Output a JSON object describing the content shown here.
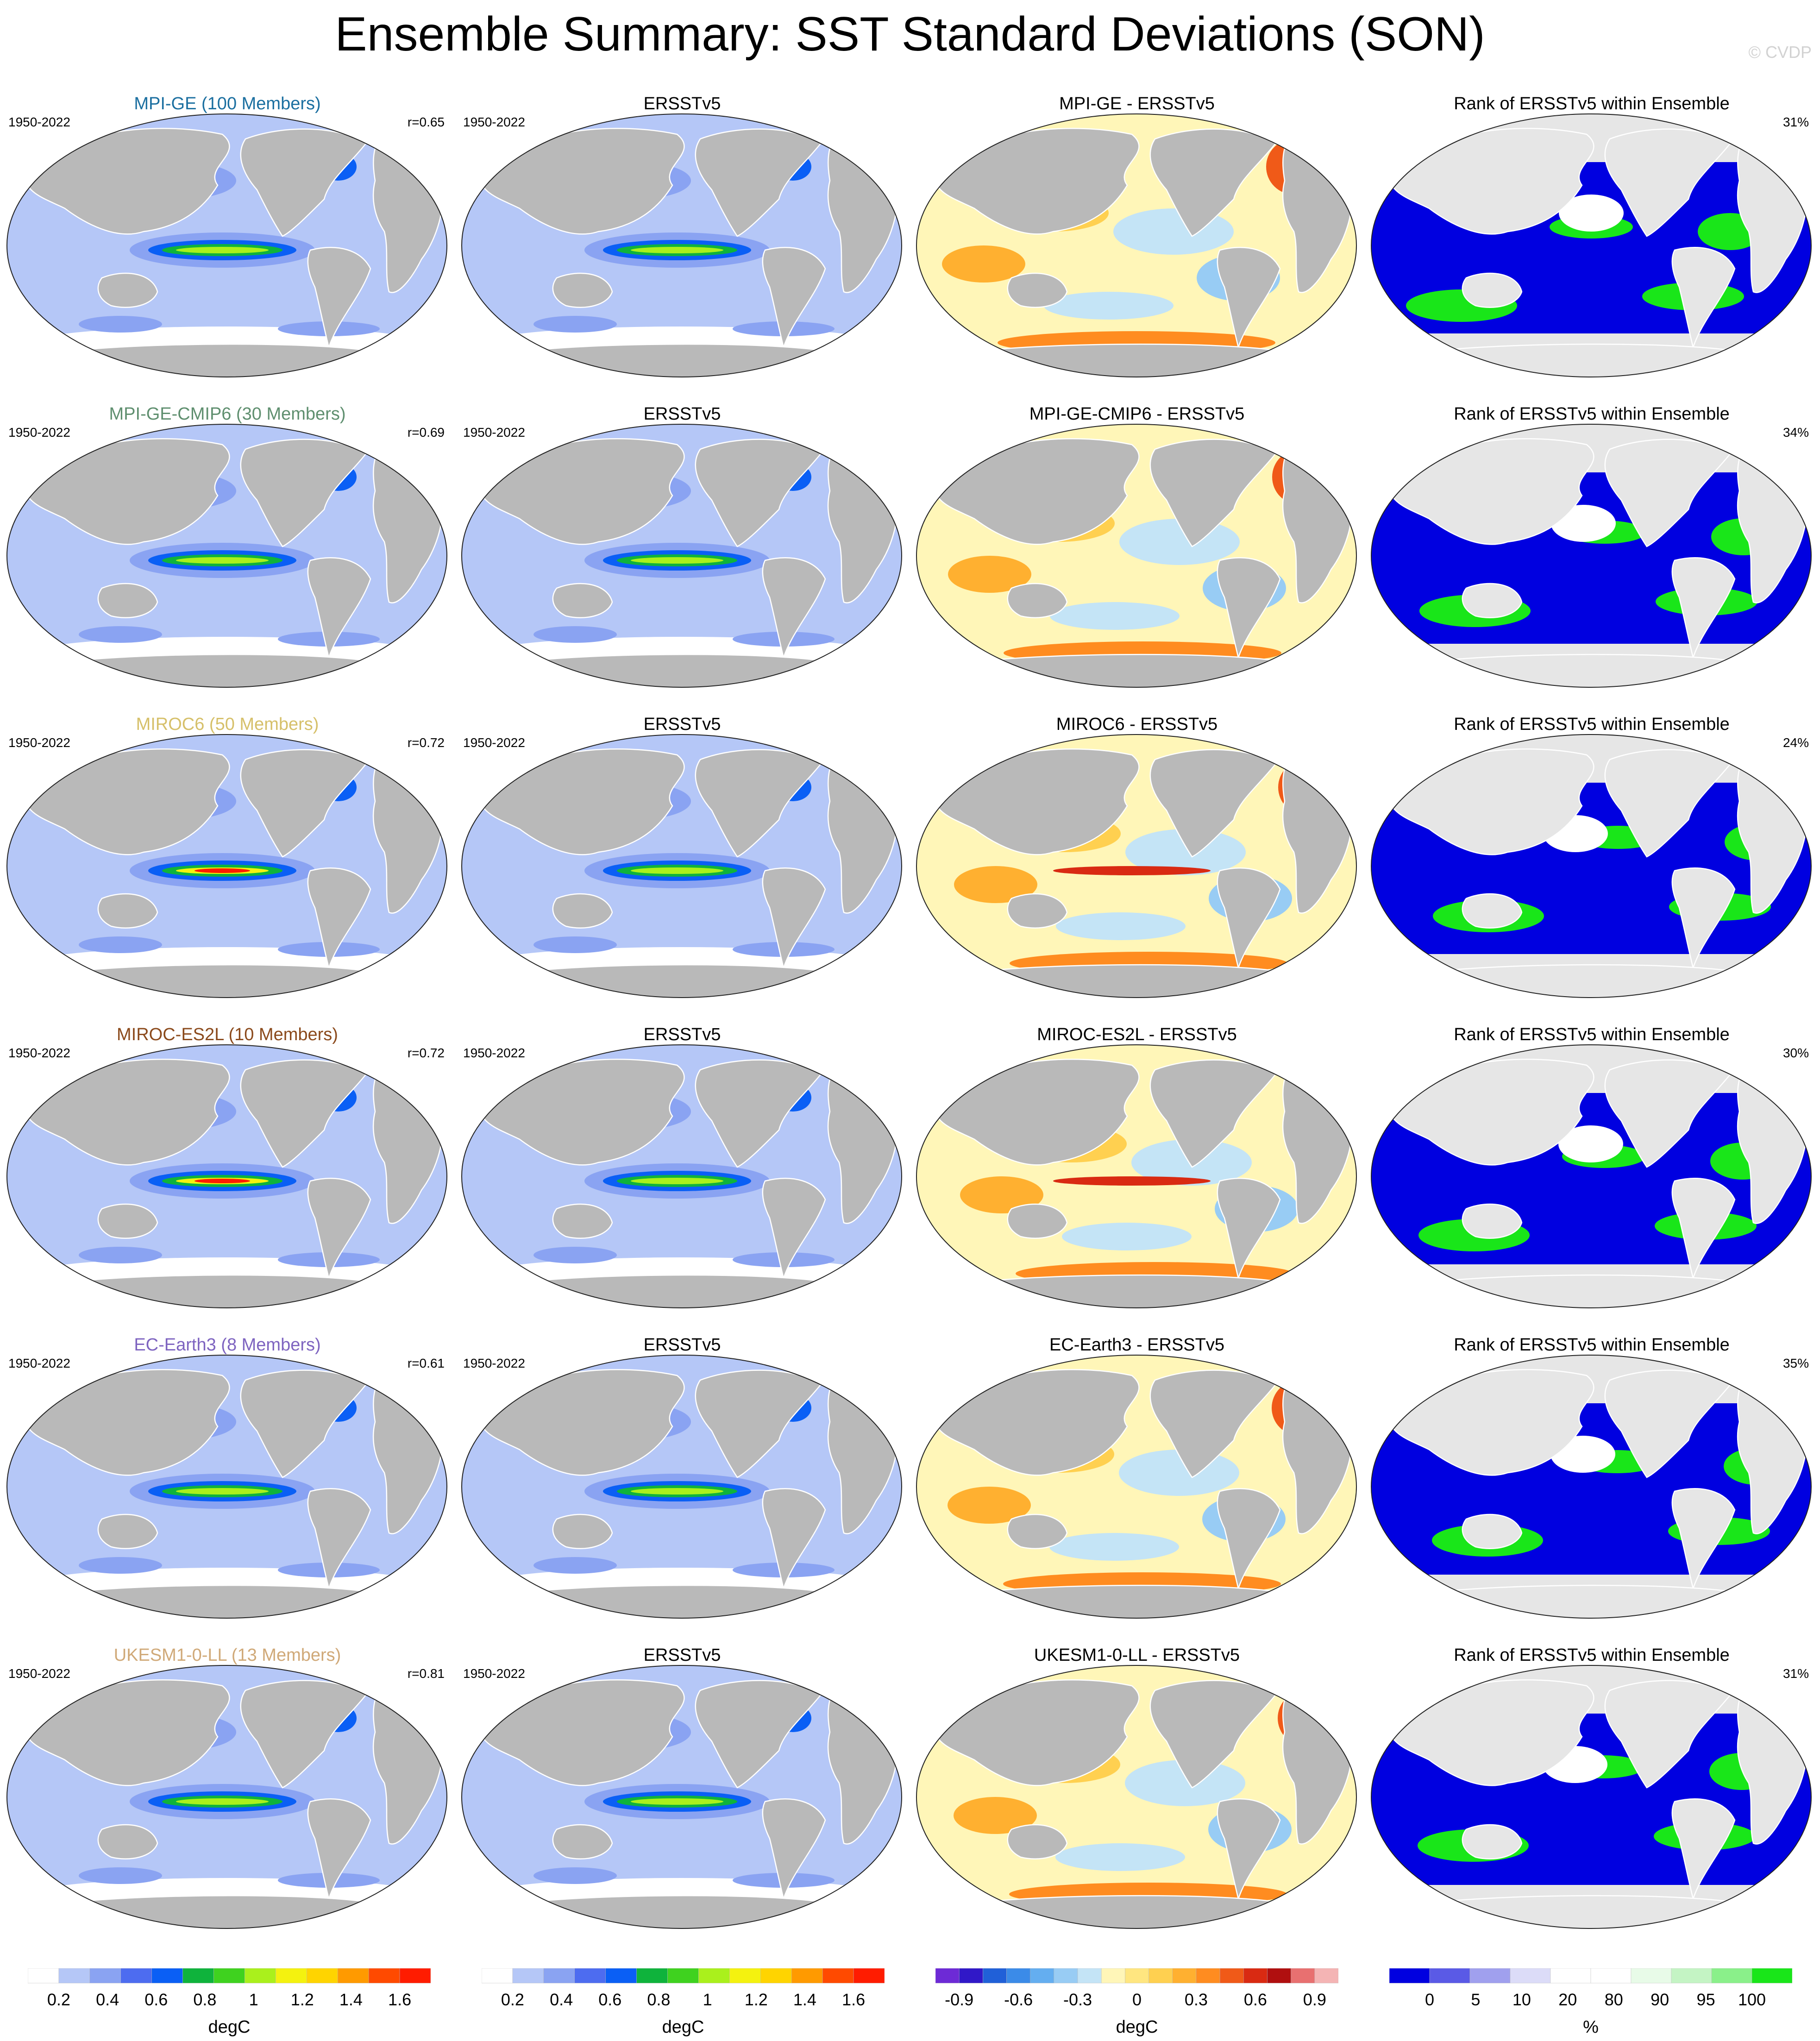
{
  "title": "Ensemble Summary: SST Standard Deviations (SON)",
  "copyright": "© CVDP",
  "period": "1950-2022",
  "colors": {
    "land": "#b9b9b9",
    "ocean_base": "#b5c7f7",
    "model_title_colors": [
      "#1b6fa0",
      "#5f8f6f",
      "#d6c06a",
      "#8b4a1c",
      "#7e64c0",
      "#d0a978"
    ]
  },
  "rows": [
    {
      "model_title": "MPI-GE (100 Members)",
      "r": "r=0.65",
      "obs_title": "ERSSTv5",
      "diff_title": "MPI-GE - ERSSTv5",
      "rank_title": "Rank of ERSSTv5 within Ensemble",
      "rank_pct": "31%"
    },
    {
      "model_title": "MPI-GE-CMIP6 (30 Members)",
      "r": "r=0.69",
      "obs_title": "ERSSTv5",
      "diff_title": "MPI-GE-CMIP6 - ERSSTv5",
      "rank_title": "Rank of ERSSTv5 within Ensemble",
      "rank_pct": "34%"
    },
    {
      "model_title": "MIROC6 (50 Members)",
      "r": "r=0.72",
      "obs_title": "ERSSTv5",
      "diff_title": "MIROC6 - ERSSTv5",
      "rank_title": "Rank of ERSSTv5 within Ensemble",
      "rank_pct": "24%"
    },
    {
      "model_title": "MIROC-ES2L (10 Members)",
      "r": "r=0.72",
      "obs_title": "ERSSTv5",
      "diff_title": "MIROC-ES2L - ERSSTv5",
      "rank_title": "Rank of ERSSTv5 within Ensemble",
      "rank_pct": "30%"
    },
    {
      "model_title": "EC-Earth3 (8 Members)",
      "r": "r=0.61",
      "obs_title": "ERSSTv5",
      "diff_title": "EC-Earth3 - ERSSTv5",
      "rank_title": "Rank of ERSSTv5 within Ensemble",
      "rank_pct": "35%"
    },
    {
      "model_title": "UKESM1-0-LL (13 Members)",
      "r": "r=0.81",
      "obs_title": "ERSSTv5",
      "diff_title": "UKESM1-0-LL - ERSSTv5",
      "rank_title": "Rank of ERSSTv5 within Ensemble",
      "rank_pct": "31%"
    }
  ],
  "colorbars": [
    {
      "unit": "degC",
      "labels": [
        "0.2",
        "0.4",
        "0.6",
        "0.8",
        "1",
        "1.2",
        "1.4",
        "1.6"
      ],
      "colors": [
        "#ffffff",
        "#b5c7f7",
        "#8aa3f2",
        "#4d6cf0",
        "#0a5ff5",
        "#0fb33c",
        "#3fd21f",
        "#aaf01c",
        "#f4f20f",
        "#ffd400",
        "#ff9a00",
        "#ff4a00",
        "#ff1c00"
      ]
    },
    {
      "unit": "degC",
      "labels": [
        "0.2",
        "0.4",
        "0.6",
        "0.8",
        "1",
        "1.2",
        "1.4",
        "1.6"
      ],
      "colors": [
        "#ffffff",
        "#b5c7f7",
        "#8aa3f2",
        "#4d6cf0",
        "#0a5ff5",
        "#0fb33c",
        "#3fd21f",
        "#aaf01c",
        "#f4f20f",
        "#ffd400",
        "#ff9a00",
        "#ff4a00",
        "#ff1c00"
      ]
    },
    {
      "unit": "degC",
      "labels": [
        "-0.9",
        "-0.6",
        "-0.3",
        "0",
        "0.3",
        "0.6",
        "0.9"
      ],
      "colors": [
        "#6d2ad6",
        "#3018c8",
        "#2060d8",
        "#3b8be8",
        "#64aef0",
        "#98ccf4",
        "#c4e4f6",
        "#fff6b8",
        "#ffe680",
        "#ffd050",
        "#ffb030",
        "#ff8c20",
        "#f05a18",
        "#d92a12",
        "#b00f0f",
        "#e87070",
        "#f4b4b4"
      ]
    },
    {
      "unit": "%",
      "labels": [
        "0",
        "5",
        "10",
        "20",
        "80",
        "90",
        "95",
        "100"
      ],
      "colors": [
        "#0000e0",
        "#5a5ae6",
        "#a0a0ee",
        "#dcdcf8",
        "#ffffff",
        "#ffffff",
        "#e8fbe8",
        "#c4f4c4",
        "#8af08a",
        "#19e619"
      ]
    }
  ]
}
